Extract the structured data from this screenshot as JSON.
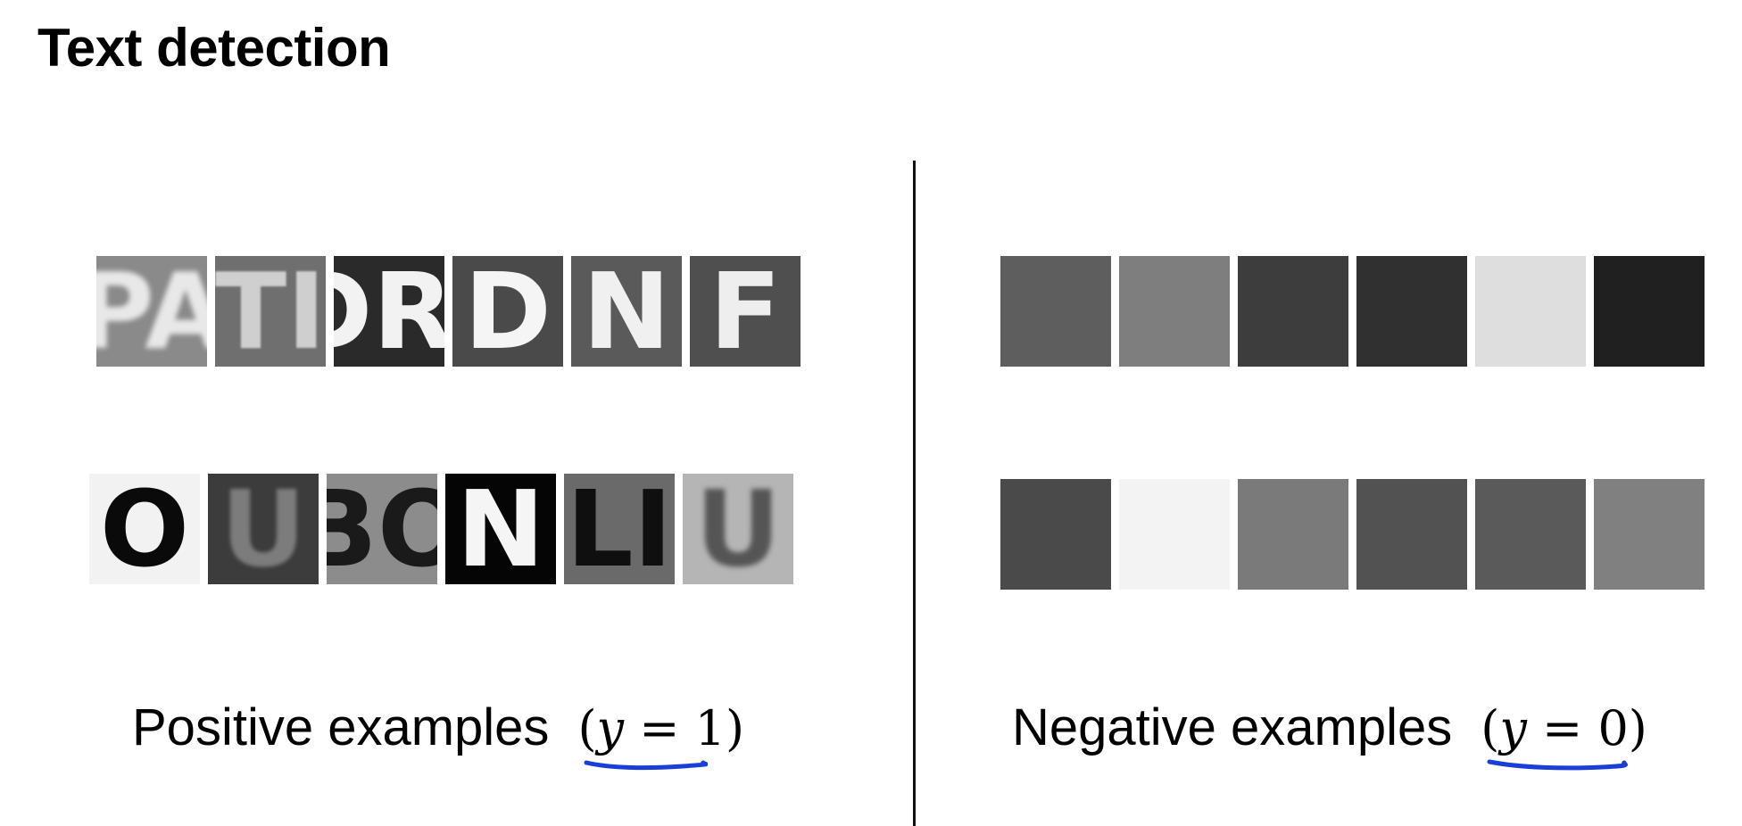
{
  "title": "Text detection",
  "positive": {
    "label": "Positive examples",
    "math": {
      "open": "(",
      "var": "y",
      "eq": " = ",
      "value": "1",
      "close": ")"
    },
    "tiles_row1": [
      {
        "glyph": "PA",
        "bg": "#8a8a8a",
        "fg": "#e8e8e8",
        "blur": 3
      },
      {
        "glyph": "TI",
        "bg": "#6f6f6f",
        "fg": "#cfcfcf",
        "blur": 1
      },
      {
        "glyph": "DRI",
        "bg": "#2a2a2a",
        "fg": "#f2f2f2",
        "blur": 0
      },
      {
        "glyph": "D",
        "bg": "#4a4a4a",
        "fg": "#f5f5f5",
        "blur": 0
      },
      {
        "glyph": "N",
        "bg": "#5a5a5a",
        "fg": "#f0f0f0",
        "blur": 0
      },
      {
        "glyph": "F",
        "bg": "#4f4f4f",
        "fg": "#eeeeee",
        "blur": 0
      }
    ],
    "tiles_row2": [
      {
        "glyph": "O",
        "bg": "#f2f2f2",
        "fg": "#0a0a0a",
        "blur": 0
      },
      {
        "glyph": "U",
        "bg": "#3c3c3c",
        "fg": "#7c7c7c",
        "blur": 2
      },
      {
        "glyph": "BO",
        "bg": "#8c8c8c",
        "fg": "#1a1a1a",
        "blur": 0
      },
      {
        "glyph": "N",
        "bg": "#050505",
        "fg": "#f5f5f5",
        "blur": 0
      },
      {
        "glyph": "LI",
        "bg": "#6a6a6a",
        "fg": "#0f0f0f",
        "blur": 0
      },
      {
        "glyph": "U",
        "bg": "#b5b5b5",
        "fg": "#555555",
        "blur": 3
      }
    ]
  },
  "negative": {
    "label": "Negative examples",
    "math": {
      "open": "(",
      "var": "y",
      "eq": " = ",
      "value": "0",
      "close": ")"
    },
    "tiles_row1": [
      {
        "glyph": "",
        "bg": "#5e5e5e"
      },
      {
        "glyph": "",
        "bg": "#7e7e7e"
      },
      {
        "glyph": "",
        "bg": "#3d3d3d"
      },
      {
        "glyph": "",
        "bg": "#303030"
      },
      {
        "glyph": "",
        "bg": "#dedede"
      },
      {
        "glyph": "",
        "bg": "#202020"
      }
    ],
    "tiles_row2": [
      {
        "glyph": "",
        "bg": "#4a4a4a"
      },
      {
        "glyph": "",
        "bg": "#f3f3f3"
      },
      {
        "glyph": "",
        "bg": "#7a7a7a"
      },
      {
        "glyph": "",
        "bg": "#525252"
      },
      {
        "glyph": "",
        "bg": "#5a5a5a"
      },
      {
        "glyph": "",
        "bg": "#808080"
      }
    ]
  },
  "colors": {
    "underline": "#1a3fd6",
    "divider": "#111111",
    "title": "#000000"
  }
}
